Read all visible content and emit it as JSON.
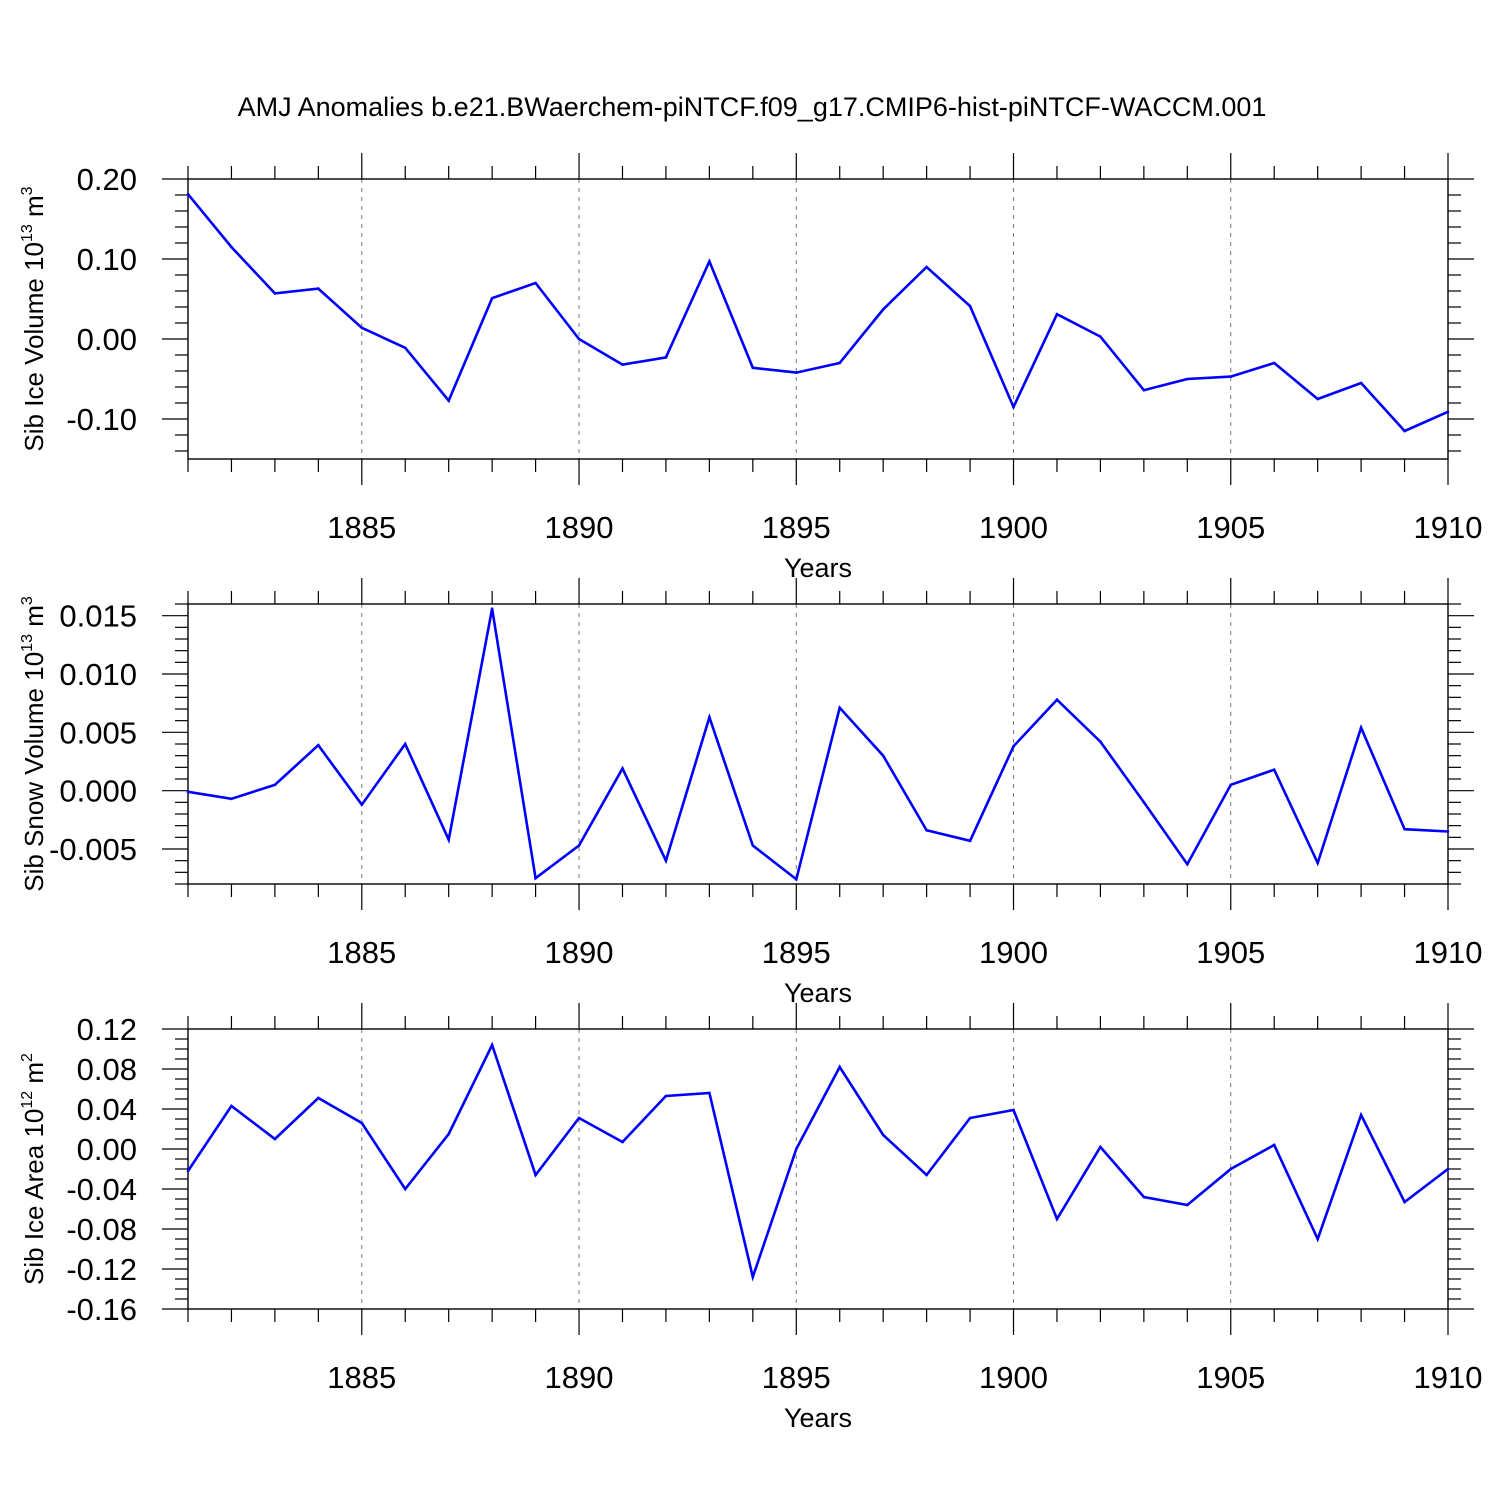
{
  "title": "AMJ Anomalies b.e21.BWaerchem-piNTCF.f09_g17.CMIP6-hist-piNTCF-WACCM.001",
  "colors": {
    "series": "#0000ff",
    "axis": "#000000",
    "grid": "#777777"
  },
  "chart_data": [
    {
      "type": "line",
      "ylabel_main": "Sib Ice Volume 10",
      "ylabel_exp": "13",
      "ylabel_unit": " m",
      "ylabel_unit_exp": "3",
      "xlabel": "Years",
      "xlim": [
        1881,
        1910
      ],
      "ylim": [
        -0.15,
        0.2
      ],
      "xticks": [
        1885,
        1890,
        1895,
        1900,
        1905,
        1910
      ],
      "xtick_labels": [
        "1885",
        "1890",
        "1895",
        "1900",
        "1905",
        "1910"
      ],
      "yticks": [
        0.2,
        0.1,
        0.0,
        -0.1
      ],
      "ytick_labels": [
        "0.20",
        "0.10",
        "0.00",
        "-0.10"
      ],
      "y_minor_step": 0.02,
      "x": [
        1881,
        1882,
        1883,
        1884,
        1885,
        1886,
        1887,
        1888,
        1889,
        1890,
        1891,
        1892,
        1893,
        1894,
        1895,
        1896,
        1897,
        1898,
        1899,
        1900,
        1901,
        1902,
        1903,
        1904,
        1905,
        1906,
        1907,
        1908,
        1909,
        1910
      ],
      "values": [
        0.181,
        0.115,
        0.057,
        0.063,
        0.014,
        -0.011,
        -0.077,
        0.051,
        0.07,
        0.0,
        -0.032,
        -0.023,
        0.097,
        -0.036,
        -0.042,
        -0.03,
        0.037,
        0.09,
        0.041,
        -0.085,
        0.031,
        0.003,
        -0.064,
        -0.05,
        -0.047,
        -0.03,
        -0.075,
        -0.055,
        -0.115,
        -0.091
      ]
    },
    {
      "type": "line",
      "ylabel_main": "Sib Snow Volume 10",
      "ylabel_exp": "13",
      "ylabel_unit": " m",
      "ylabel_unit_exp": "3",
      "xlabel": "Years",
      "xlim": [
        1881,
        1910
      ],
      "ylim": [
        -0.008,
        0.016
      ],
      "xticks": [
        1885,
        1890,
        1895,
        1900,
        1905,
        1910
      ],
      "xtick_labels": [
        "1885",
        "1890",
        "1895",
        "1900",
        "1905",
        "1910"
      ],
      "yticks": [
        0.015,
        0.01,
        0.005,
        0.0,
        -0.005
      ],
      "ytick_labels": [
        "0.015",
        "0.010",
        "0.005",
        "0.000",
        "-0.005"
      ],
      "y_minor_step": 0.001,
      "x": [
        1881,
        1882,
        1883,
        1884,
        1885,
        1886,
        1887,
        1888,
        1889,
        1890,
        1891,
        1892,
        1893,
        1894,
        1895,
        1896,
        1897,
        1898,
        1899,
        1900,
        1901,
        1902,
        1903,
        1904,
        1905,
        1906,
        1907,
        1908,
        1909,
        1910
      ],
      "values": [
        -0.0001,
        -0.0007,
        0.0005,
        0.0039,
        -0.0012,
        0.004,
        -0.0042,
        0.0156,
        -0.0075,
        -0.0047,
        0.0019,
        -0.006,
        0.0063,
        -0.0047,
        -0.0076,
        0.0071,
        0.003,
        -0.0034,
        -0.0043,
        0.0038,
        0.0078,
        0.0042,
        -0.001,
        -0.0063,
        0.0005,
        0.0018,
        -0.0062,
        0.0054,
        -0.0033,
        -0.0035
      ]
    },
    {
      "type": "line",
      "ylabel_main": "Sib Ice Area 10",
      "ylabel_exp": "12",
      "ylabel_unit": " m",
      "ylabel_unit_exp": "2",
      "xlabel": "Years",
      "xlim": [
        1881,
        1910
      ],
      "ylim": [
        -0.16,
        0.12
      ],
      "xticks": [
        1885,
        1890,
        1895,
        1900,
        1905,
        1910
      ],
      "xtick_labels": [
        "1885",
        "1890",
        "1895",
        "1900",
        "1905",
        "1910"
      ],
      "yticks": [
        0.12,
        0.08,
        0.04,
        0.0,
        -0.04,
        -0.08,
        -0.12,
        -0.16
      ],
      "ytick_labels": [
        "0.12",
        "0.08",
        "0.04",
        "0.00",
        "-0.04",
        "-0.08",
        "-0.12",
        "-0.16"
      ],
      "y_minor_step": 0.01,
      "x": [
        1881,
        1882,
        1883,
        1884,
        1885,
        1886,
        1887,
        1888,
        1889,
        1890,
        1891,
        1892,
        1893,
        1894,
        1895,
        1896,
        1897,
        1898,
        1899,
        1900,
        1901,
        1902,
        1903,
        1904,
        1905,
        1906,
        1907,
        1908,
        1909,
        1910
      ],
      "values": [
        -0.022,
        0.043,
        0.01,
        0.051,
        0.026,
        -0.04,
        0.015,
        0.104,
        -0.026,
        0.031,
        0.007,
        0.053,
        0.056,
        -0.128,
        0.0,
        0.082,
        0.014,
        -0.026,
        0.031,
        0.039,
        -0.07,
        0.002,
        -0.048,
        -0.056,
        -0.02,
        0.004,
        -0.09,
        0.034,
        -0.053,
        -0.02
      ]
    }
  ]
}
